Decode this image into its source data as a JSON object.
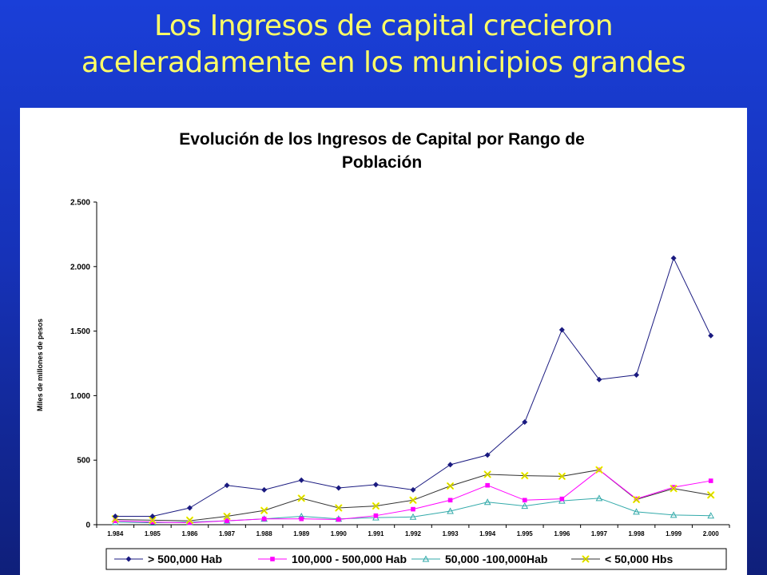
{
  "slide": {
    "title_line1": "Los Ingresos de capital crecieron",
    "title_line2": "aceleradamente en los municipios grandes"
  },
  "chart_data": {
    "type": "line",
    "title_line1": "Evolución de los Ingresos de Capital por Rango de",
    "title_line2": "Población",
    "xlabel": "",
    "ylabel": "Miles de millones de pesos",
    "ylim": [
      0,
      2500
    ],
    "yticks": [
      0,
      500,
      1000,
      1500,
      2000,
      2500
    ],
    "ytick_labels": [
      "0",
      "500",
      "1.000",
      "1.500",
      "2.000",
      "2.500"
    ],
    "categories": [
      "1.984",
      "1.985",
      "1.986",
      "1.987",
      "1.988",
      "1.989",
      "1.990",
      "1.991",
      "1.992",
      "1.993",
      "1.994",
      "1.995",
      "1.996",
      "1.997",
      "1.998",
      "1.999",
      "2.000"
    ],
    "grid": false,
    "legend_position": "bottom",
    "series": [
      {
        "name": "> 500,000 Hab",
        "marker": "diamond",
        "color": "#1a1a80",
        "values": [
          65,
          65,
          130,
          305,
          270,
          345,
          285,
          310,
          270,
          465,
          540,
          795,
          1510,
          1125,
          1160,
          2065,
          1465
        ]
      },
      {
        "name": "100,000 - 500,000 Hab",
        "marker": "square",
        "color": "#ff00ff",
        "values": [
          30,
          20,
          15,
          30,
          45,
          45,
          40,
          70,
          120,
          190,
          305,
          190,
          200,
          425,
          200,
          290,
          340
        ]
      },
      {
        "name": "50,000 -100,000Hab",
        "marker": "triangle",
        "color": "#33aaaa",
        "values": [
          20,
          15,
          20,
          30,
          45,
          65,
          45,
          55,
          60,
          105,
          175,
          145,
          185,
          205,
          100,
          75,
          70
        ]
      },
      {
        "name": "< 50,000 Hbs",
        "marker": "x",
        "color": "#ffff00",
        "values": [
          45,
          35,
          35,
          65,
          110,
          205,
          130,
          145,
          190,
          300,
          390,
          380,
          375,
          425,
          195,
          280,
          230
        ]
      }
    ],
    "gray_line": {
      "color": "#333333",
      "values": [
        40,
        35,
        30,
        65,
        110,
        205,
        130,
        145,
        190,
        300,
        390,
        380,
        375,
        425,
        195,
        280,
        230
      ]
    }
  }
}
